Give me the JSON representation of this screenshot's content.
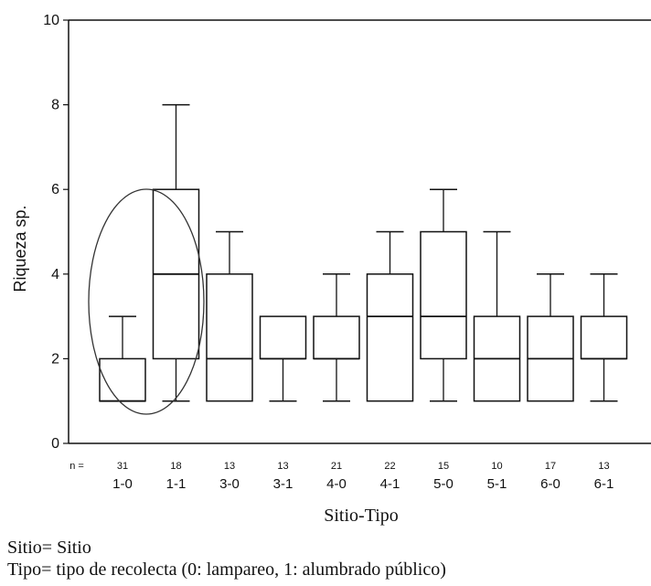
{
  "chart_data": {
    "type": "box",
    "ylabel": "Riqueza sp.",
    "xlabel": "Sitio-Tipo",
    "ylim": [
      0,
      10
    ],
    "yticks": [
      0,
      2,
      4,
      6,
      8,
      10
    ],
    "n_label": "n =",
    "categories": [
      "1-0",
      "1-1",
      "3-0",
      "3-1",
      "4-0",
      "4-1",
      "5-0",
      "5-1",
      "6-0",
      "6-1"
    ],
    "n": [
      "31",
      "18",
      "13",
      "13",
      "21",
      "22",
      "15",
      "10",
      "17",
      "13"
    ],
    "boxes": [
      {
        "min": 1,
        "q1": 1,
        "median": 1,
        "q3": 2,
        "max": 3
      },
      {
        "min": 1,
        "q1": 2,
        "median": 4,
        "q3": 6,
        "max": 8
      },
      {
        "min": 1,
        "q1": 1,
        "median": 2,
        "q3": 4,
        "max": 5
      },
      {
        "min": 1,
        "q1": 2,
        "median": 2,
        "q3": 3,
        "max": 3
      },
      {
        "min": 1,
        "q1": 2,
        "median": 2,
        "q3": 3,
        "max": 4
      },
      {
        "min": 1,
        "q1": 1,
        "median": 3,
        "q3": 4,
        "max": 5
      },
      {
        "min": 1,
        "q1": 2,
        "median": 3,
        "q3": 5,
        "max": 6
      },
      {
        "min": 1,
        "q1": 1,
        "median": 2,
        "q3": 3,
        "max": 5
      },
      {
        "min": 1,
        "q1": 1,
        "median": 2,
        "q3": 3,
        "max": 4
      },
      {
        "min": 1,
        "q1": 2,
        "median": 2,
        "q3": 3,
        "max": 4
      }
    ],
    "grid": false,
    "annotation": "ellipse around 1-0 and 1-1"
  },
  "legend": {
    "line1": "Sitio= Sitio",
    "line2": "Tipo= tipo de recolecta (0: lampareo, 1: alumbrado público)"
  }
}
